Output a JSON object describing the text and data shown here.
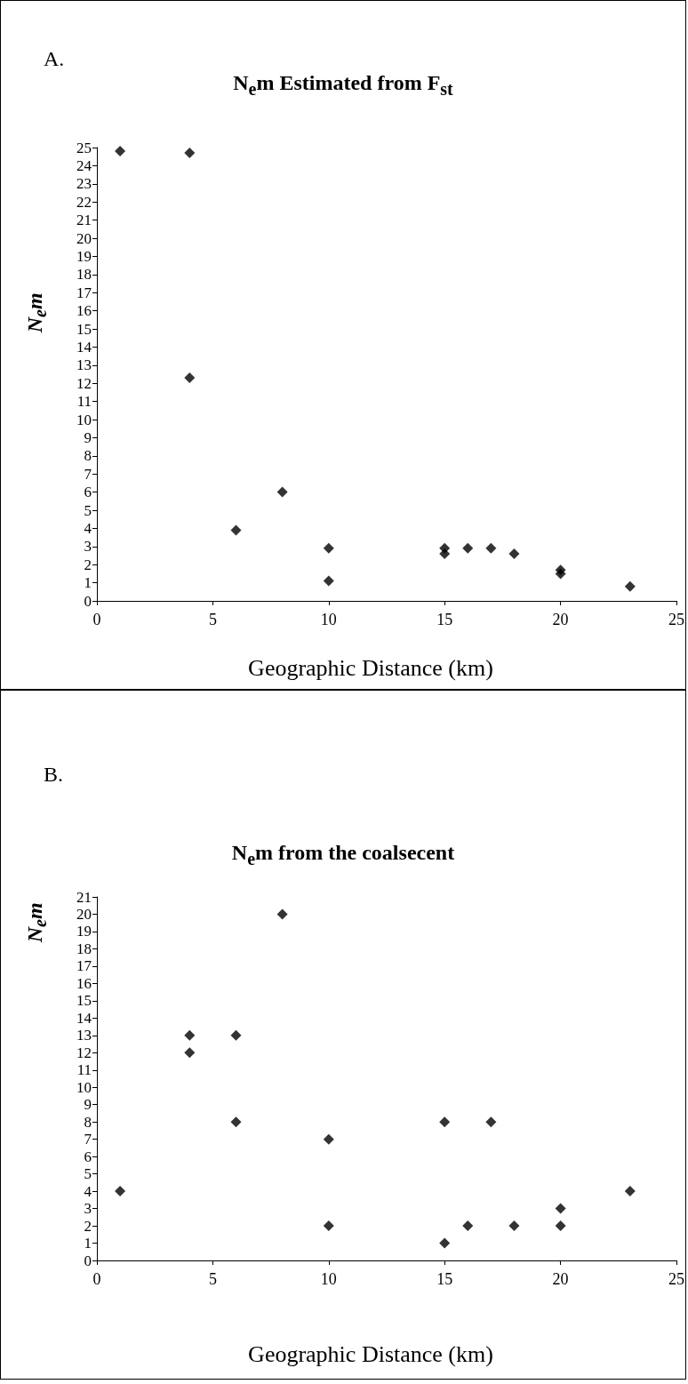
{
  "chart_data": [
    {
      "type": "scatter",
      "title": "N$_{e}$m Estimated from F$_{st}$",
      "xlabel": "Geographic Distance (km)",
      "ylabel": "N$_{e}$m",
      "annotations": [
        "A."
      ],
      "x": [
        1,
        4,
        4,
        6,
        8,
        10,
        10,
        15,
        15,
        16,
        17,
        18,
        20,
        20,
        23
      ],
      "series": [
        {
          "color": "#000000",
          "values": [
            24.8,
            24.7,
            12.3,
            3.9,
            6,
            2.9,
            1.1,
            2.9,
            2.6,
            2.9,
            2.9,
            2.6,
            1.7,
            1.5,
            0.8
          ]
        }
      ],
      "xlim": [
        0,
        25
      ],
      "xticks": [
        0,
        5,
        10,
        15,
        20,
        25
      ],
      "ylim": [
        0,
        25
      ],
      "yticks": [
        0,
        1,
        2,
        3,
        4,
        5,
        6,
        7,
        8,
        9,
        10,
        11,
        12,
        13,
        14,
        15,
        16,
        17,
        18,
        19,
        20,
        21,
        22,
        23,
        24,
        25
      ],
      "marker": "diamond"
    },
    {
      "type": "scatter",
      "title": "N$_{e}$m from the coalsecent",
      "xlabel": "Geographic Distance (km)",
      "ylabel": "N$_{e}$m",
      "annotations": [
        "B."
      ],
      "x": [
        1,
        4,
        4,
        6,
        6,
        8,
        10,
        10,
        15,
        15,
        16,
        17,
        18,
        20,
        20,
        23
      ],
      "series": [
        {
          "color": "#000000",
          "values": [
            4,
            13,
            12,
            13,
            8,
            20,
            7,
            2,
            8,
            1,
            2,
            8,
            2,
            3,
            2,
            4
          ]
        }
      ],
      "xlim": [
        0,
        25
      ],
      "xticks": [
        0,
        5,
        10,
        15,
        20,
        25
      ],
      "ylim": [
        0,
        21
      ],
      "yticks": [
        0,
        1,
        2,
        3,
        4,
        5,
        6,
        7,
        8,
        9,
        10,
        11,
        12,
        13,
        14,
        15,
        16,
        17,
        18,
        19,
        20,
        21
      ],
      "marker": "diamond"
    }
  ]
}
